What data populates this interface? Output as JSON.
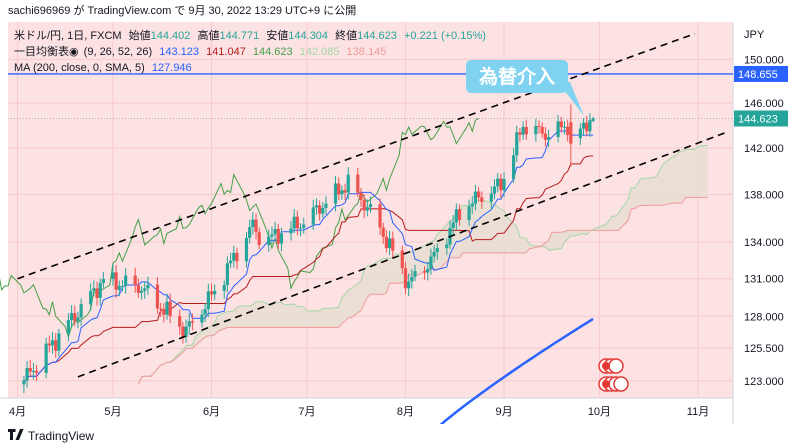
{
  "header": {
    "publisher_line": "sachi696969 が TradingView.com で 9月 30, 2022 13:29 UTC+9 に公開"
  },
  "legend": {
    "row1": {
      "symbol": "米ドル/円, 1日, FXCM",
      "open_label": "始値",
      "open": "144.402",
      "high_label": "高値",
      "high": "144.771",
      "low_label": "安値",
      "low": "144.304",
      "close_label": "終値",
      "close": "144.623",
      "change": "+0.221 (+0.15%)"
    },
    "row2": {
      "name": "一目均衡表",
      "params": "(9, 26, 52, 26)",
      "v1": "143.123",
      "v2": "141.047",
      "v3": "144.623",
      "v4": "142.085",
      "v5": "138.145"
    },
    "row3": {
      "name": "MA (200, close, 0, SMA, 5)",
      "v1": "127.946"
    }
  },
  "annotation": {
    "text": "為替介入"
  },
  "footer": {
    "brand": "TradingView"
  },
  "colors": {
    "up": "#26a69a",
    "down": "#ef5350",
    "tenkan": "#2962ff",
    "kijun": "#b71c1c",
    "chikou": "#43a047",
    "ma": "#2962ff",
    "cloud": "#e8ddd2",
    "bg": "#fde2e4",
    "badge": "#7fd3f0",
    "hline": "#2962ff"
  },
  "chart_data": {
    "type": "candlestick",
    "symbol": "米ドル/円",
    "interval": "1日",
    "currency": "JPY",
    "y_axis": {
      "ticks": [
        123.0,
        125.5,
        128.0,
        131.0,
        134.0,
        138.0,
        142.0,
        146.0,
        150.0
      ],
      "tick_labels": [
        "123.000",
        "125.500",
        "128.000",
        "131.000",
        "134.000",
        "138.000",
        "142.000",
        "146.000",
        "150.000"
      ],
      "range": [
        121.7,
        153.5
      ],
      "scale": "log"
    },
    "x_axis": {
      "tick_labels": [
        "4月",
        "5月",
        "6月",
        "7月",
        "8月",
        "9月",
        "10月",
        "11月"
      ],
      "tick_dates": [
        "2022-04-01",
        "2022-05-01",
        "2022-06-01",
        "2022-07-01",
        "2022-08-01",
        "2022-09-01",
        "2022-10-01",
        "2022-11-01"
      ],
      "range": [
        "2022-03-29",
        "2022-11-12"
      ]
    },
    "last_price": 144.623,
    "horizontal_line": {
      "value": 148.655,
      "label": "148.655"
    },
    "ohlc_last": {
      "open": 144.402,
      "high": 144.771,
      "low": 144.304,
      "close": 144.623
    },
    "ma200_end": 127.946,
    "ichimoku_last": {
      "tenkan": 143.123,
      "kijun": 141.047,
      "chikou": 144.623,
      "span_a": 142.085,
      "span_b": 138.145
    },
    "trend_channel": {
      "upper": [
        [
          "2022-04-01",
          131.0
        ],
        [
          "2022-10-31",
          152.4
        ]
      ],
      "lower": [
        [
          "2022-04-20",
          123.3
        ],
        [
          "2022-11-10",
          143.4
        ]
      ],
      "style": "dashed"
    },
    "intervention_marker": {
      "date": "2022-09-22",
      "high": 145.9,
      "low": 140.4,
      "label": "為替介入"
    },
    "grid": true
  }
}
